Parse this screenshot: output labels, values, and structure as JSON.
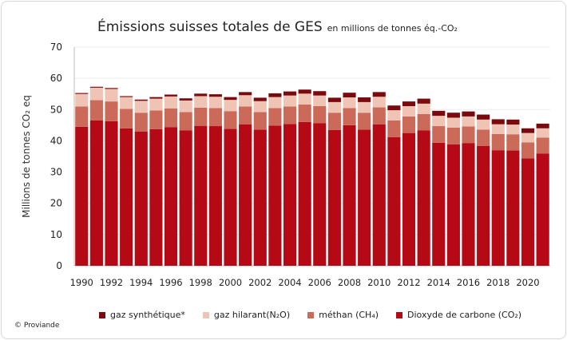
{
  "chart_data": {
    "type": "bar",
    "stacked": true,
    "title": "Émissions suisses totales de GES",
    "subtitle": "en millions de tonnes éq.-CO₂",
    "xlabel": "",
    "ylabel": "Millions de tonnes CO₂ eq",
    "ylim": [
      0,
      70
    ],
    "yticks": [
      0,
      10,
      20,
      30,
      40,
      50,
      60,
      70
    ],
    "grid": true,
    "legend_position": "bottom",
    "categories": [
      1990,
      1991,
      1992,
      1993,
      1994,
      1995,
      1996,
      1997,
      1998,
      1999,
      2000,
      2001,
      2002,
      2003,
      2004,
      2005,
      2006,
      2007,
      2008,
      2009,
      2010,
      2011,
      2012,
      2013,
      2014,
      2015,
      2016,
      2017,
      2018,
      2019,
      2020,
      2021
    ],
    "xtick_labels": [
      "1990",
      "1992",
      "1994",
      "1996",
      "1998",
      "2000",
      "2002",
      "2004",
      "2006",
      "2008",
      "2010",
      "2012",
      "2014",
      "2016",
      "2018",
      "2020"
    ],
    "series": [
      {
        "name": "Dioxyde de carbone (CO₂)",
        "color": "#b50a16",
        "values": [
          44.5,
          46.5,
          46.3,
          44.0,
          43.0,
          43.7,
          44.4,
          43.3,
          44.8,
          44.7,
          43.8,
          45.3,
          43.6,
          44.9,
          45.4,
          46.0,
          45.6,
          43.5,
          45.0,
          43.6,
          45.3,
          41.2,
          42.5,
          43.3,
          39.4,
          38.9,
          39.3,
          38.4,
          37.0,
          36.9,
          34.4,
          35.9
        ]
      },
      {
        "name": "méthan (CH₄)",
        "color": "#cc6a5a",
        "values": [
          6.5,
          6.5,
          6.3,
          6.2,
          6.0,
          6.0,
          6.0,
          5.9,
          5.8,
          5.8,
          5.7,
          5.7,
          5.6,
          5.6,
          5.6,
          5.6,
          5.5,
          5.5,
          5.5,
          5.4,
          5.4,
          5.3,
          5.3,
          5.3,
          5.3,
          5.3,
          5.3,
          5.2,
          5.2,
          5.2,
          5.1,
          5.1
        ]
      },
      {
        "name": "gaz hilarant(N₂O)",
        "color": "#f0c4b4",
        "values": [
          4.0,
          4.0,
          4.0,
          3.8,
          3.8,
          3.8,
          3.8,
          3.7,
          3.7,
          3.6,
          3.6,
          3.6,
          3.5,
          3.5,
          3.5,
          3.5,
          3.4,
          3.4,
          3.4,
          3.4,
          3.4,
          3.3,
          3.3,
          3.3,
          3.3,
          3.2,
          3.2,
          3.2,
          3.1,
          3.1,
          3.0,
          3.0
        ]
      },
      {
        "name": "gaz synthétique*",
        "color": "#7a0a0e",
        "values": [
          0.3,
          0.3,
          0.3,
          0.3,
          0.4,
          0.5,
          0.6,
          0.7,
          0.8,
          0.8,
          0.9,
          1.0,
          1.1,
          1.2,
          1.3,
          1.3,
          1.4,
          1.4,
          1.5,
          1.5,
          1.5,
          1.5,
          1.5,
          1.6,
          1.6,
          1.6,
          1.6,
          1.6,
          1.6,
          1.6,
          1.5,
          1.5
        ]
      }
    ],
    "legend_order": [
      3,
      2,
      1,
      0
    ]
  },
  "footer": {
    "copyright": "© Proviande"
  }
}
